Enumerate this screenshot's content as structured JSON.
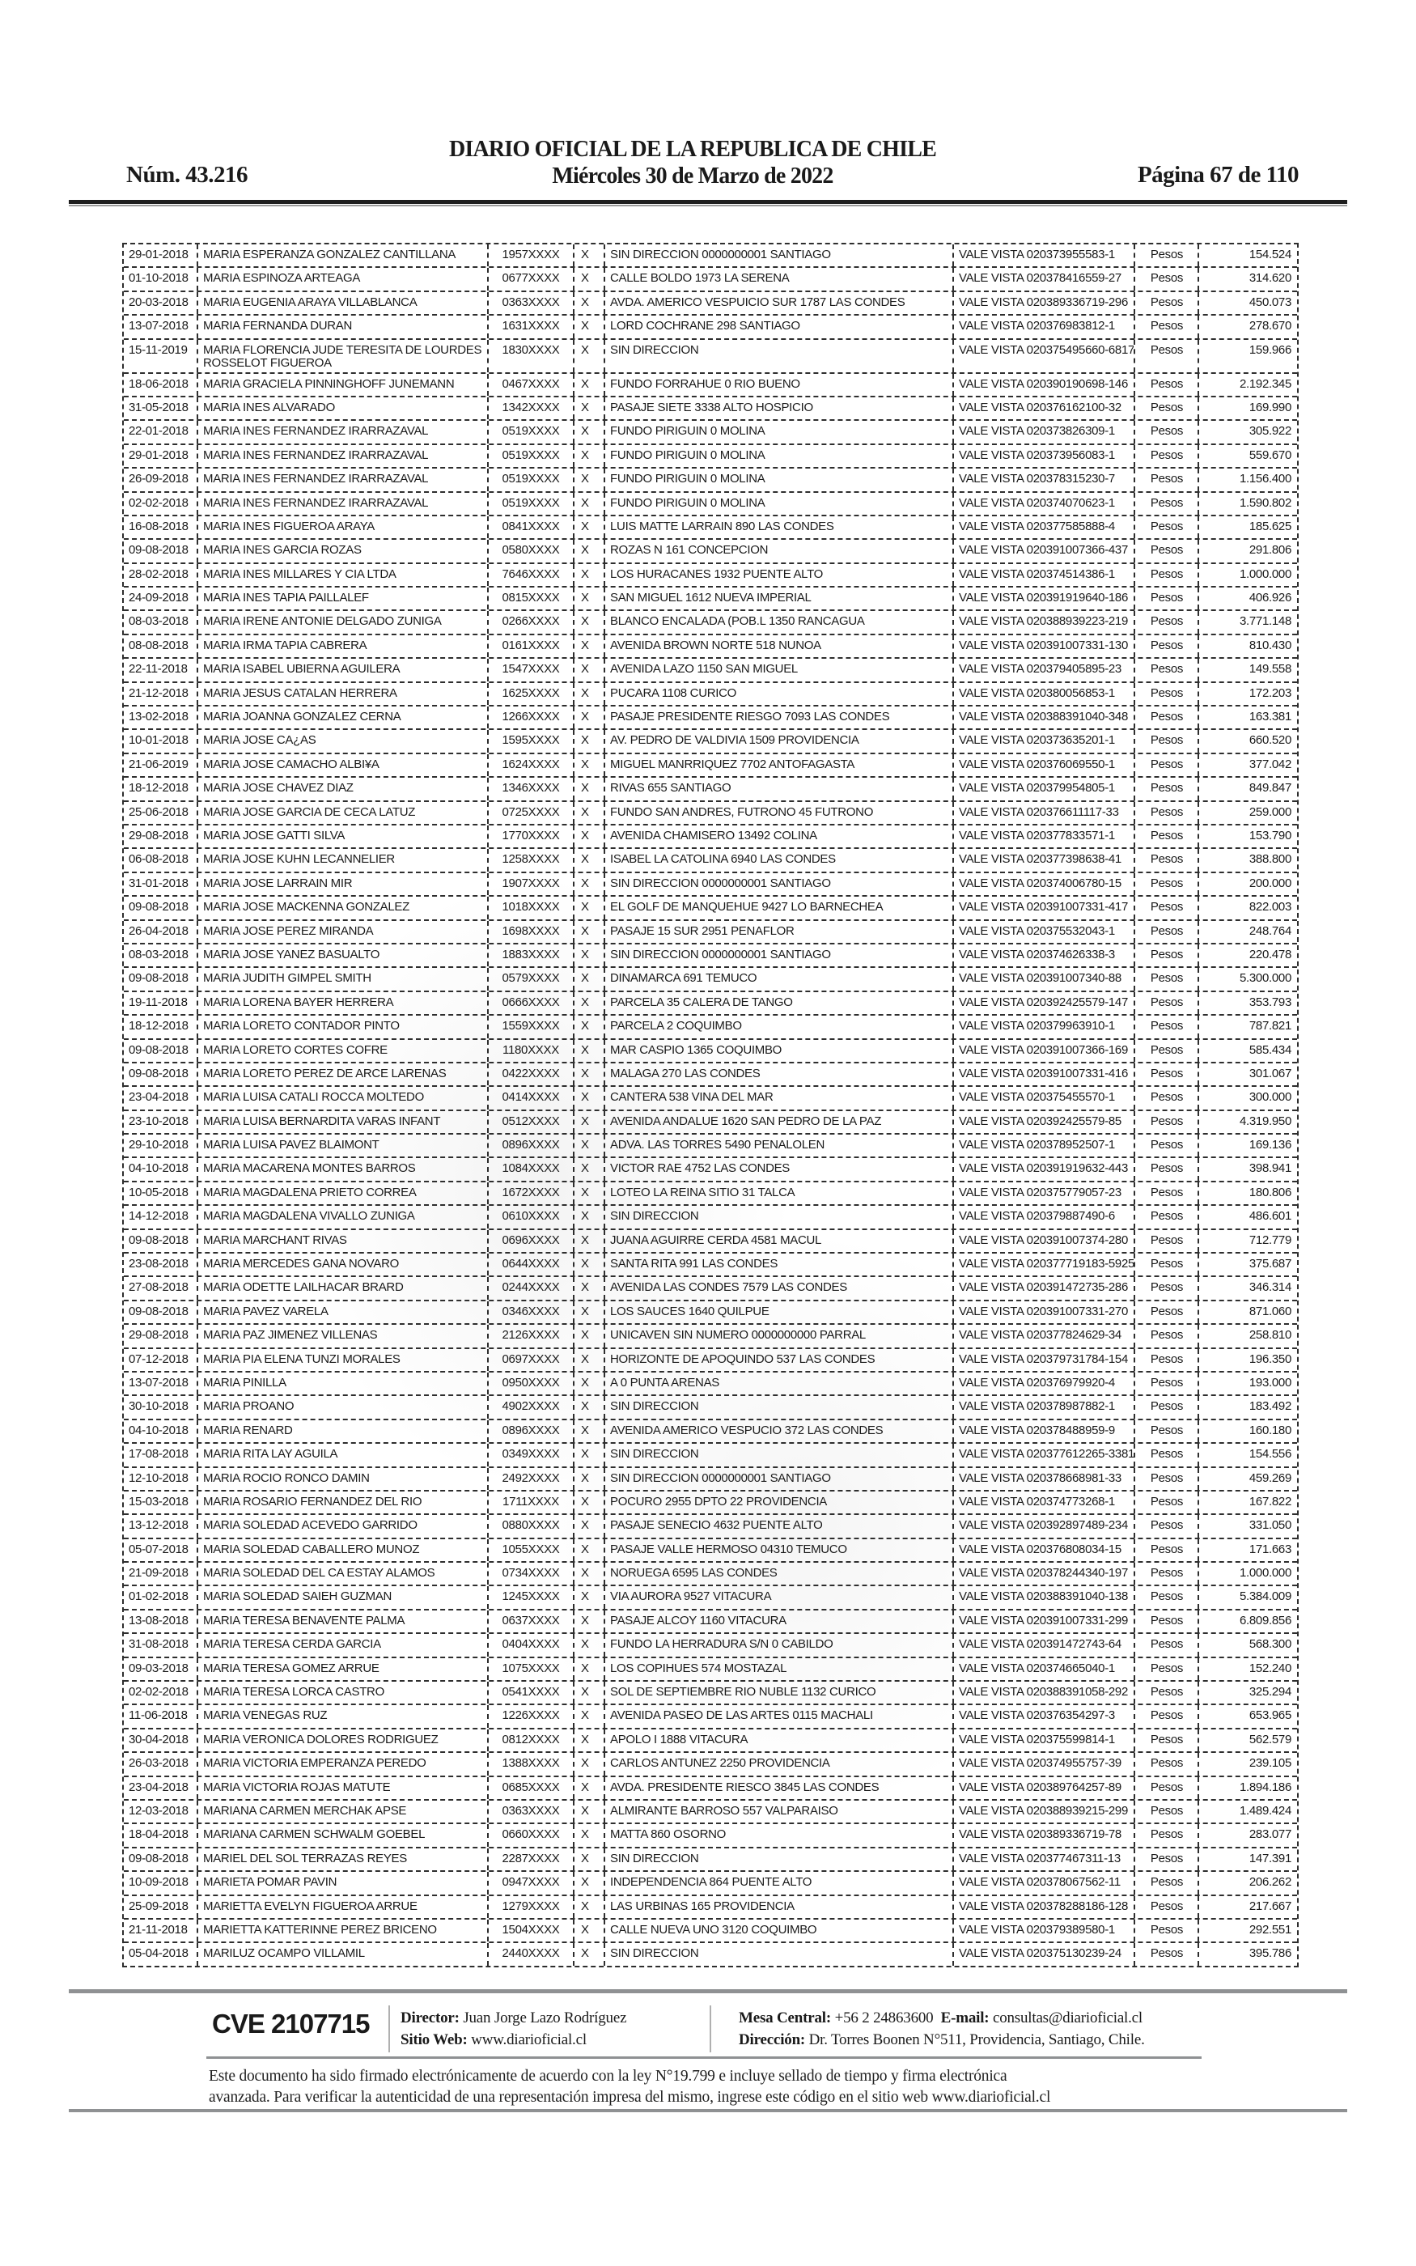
{
  "header": {
    "issue_number": "Núm. 43.216",
    "title": "DIARIO OFICIAL DE LA REPUBLICA DE CHILE",
    "date_line": "Miércoles 30 de Marzo de 2022",
    "page_indicator": "Página 67 de 110"
  },
  "table": {
    "check_mark": "X",
    "currency_label": "Pesos",
    "rows": [
      {
        "date": "29-01-2018",
        "name": "MARIA ESPERANZA GONZALEZ CANTILLANA",
        "id": "1957XXXX",
        "address": "SIN DIRECCION 0000000001 SANTIAGO",
        "vale_vista": "VALE VISTA 020373955583-1",
        "amount": "154.524"
      },
      {
        "date": "01-10-2018",
        "name": "MARIA ESPINOZA ARTEAGA",
        "id": "0677XXXX",
        "address": "CALLE BOLDO 1973 LA SERENA",
        "vale_vista": "VALE VISTA 020378416559-27",
        "amount": "314.620"
      },
      {
        "date": "20-03-2018",
        "name": "MARIA EUGENIA ARAYA VILLABLANCA",
        "id": "0363XXXX",
        "address": "AVDA. AMERICO VESPUICIO SUR 1787 LAS CONDES",
        "vale_vista": "VALE VISTA 020389336719-296",
        "amount": "450.073"
      },
      {
        "date": "13-07-2018",
        "name": "MARIA FERNANDA DURAN",
        "id": "1631XXXX",
        "address": "LORD COCHRANE 298 SANTIAGO",
        "vale_vista": "VALE VISTA 020376983812-1",
        "amount": "278.670"
      },
      {
        "date": "15-11-2019",
        "name": "MARIA FLORENCIA JUDE TERESITA DE LOURDES\nROSSELOT FIGUEROA",
        "id": "1830XXXX",
        "address": "SIN DIRECCION",
        "vale_vista": "VALE VISTA 020375495660-6817",
        "amount": "159.966"
      },
      {
        "date": "18-06-2018",
        "name": "MARIA GRACIELA PINNINGHOFF JUNEMANN",
        "id": "0467XXXX",
        "address": "FUNDO FORRAHUE 0 RIO BUENO",
        "vale_vista": "VALE VISTA 020390190698-146",
        "amount": "2.192.345"
      },
      {
        "date": "31-05-2018",
        "name": "MARIA INES ALVARADO",
        "id": "1342XXXX",
        "address": "PASAJE SIETE 3338 ALTO HOSPICIO",
        "vale_vista": "VALE VISTA 020376162100-32",
        "amount": "169.990"
      },
      {
        "date": "22-01-2018",
        "name": "MARIA INES FERNANDEZ IRARRAZAVAL",
        "id": "0519XXXX",
        "address": "FUNDO PIRIGUIN 0 MOLINA",
        "vale_vista": "VALE VISTA 020373826309-1",
        "amount": "305.922"
      },
      {
        "date": "29-01-2018",
        "name": "MARIA INES FERNANDEZ IRARRAZAVAL",
        "id": "0519XXXX",
        "address": "FUNDO PIRIGUIN 0 MOLINA",
        "vale_vista": "VALE VISTA 020373956083-1",
        "amount": "559.670"
      },
      {
        "date": "26-09-2018",
        "name": "MARIA INES FERNANDEZ IRARRAZAVAL",
        "id": "0519XXXX",
        "address": "FUNDO PIRIGUIN 0 MOLINA",
        "vale_vista": "VALE VISTA 020378315230-7",
        "amount": "1.156.400"
      },
      {
        "date": "02-02-2018",
        "name": "MARIA INES FERNANDEZ IRARRAZAVAL",
        "id": "0519XXXX",
        "address": "FUNDO PIRIGUIN 0 MOLINA",
        "vale_vista": "VALE VISTA 020374070623-1",
        "amount": "1.590.802"
      },
      {
        "date": "16-08-2018",
        "name": "MARIA INES FIGUEROA ARAYA",
        "id": "0841XXXX",
        "address": "LUIS MATTE LARRAIN 890 LAS CONDES",
        "vale_vista": "VALE VISTA 020377585888-4",
        "amount": "185.625"
      },
      {
        "date": "09-08-2018",
        "name": "MARIA INES GARCIA ROZAS",
        "id": "0580XXXX",
        "address": "ROZAS N 161 CONCEPCION",
        "vale_vista": "VALE VISTA 020391007366-437",
        "amount": "291.806"
      },
      {
        "date": "28-02-2018",
        "name": "MARIA INES MILLARES Y CIA LTDA",
        "id": "7646XXXX",
        "address": "LOS HURACANES 1932 PUENTE ALTO",
        "vale_vista": "VALE VISTA 020374514386-1",
        "amount": "1.000.000"
      },
      {
        "date": "24-09-2018",
        "name": "MARIA INES TAPIA PAILLALEF",
        "id": "0815XXXX",
        "address": "SAN MIGUEL 1612 NUEVA IMPERIAL",
        "vale_vista": "VALE VISTA 020391919640-186",
        "amount": "406.926"
      },
      {
        "date": "08-03-2018",
        "name": "MARIA IRENE ANTONIE DELGADO ZUNIGA",
        "id": "0266XXXX",
        "address": "BLANCO ENCALADA (POB.L 1350 RANCAGUA",
        "vale_vista": "VALE VISTA 020388939223-219",
        "amount": "3.771.148"
      },
      {
        "date": "08-08-2018",
        "name": "MARIA IRMA TAPIA CABRERA",
        "id": "0161XXXX",
        "address": "AVENIDA BROWN NORTE 518 NUNOA",
        "vale_vista": "VALE VISTA 020391007331-130",
        "amount": "810.430"
      },
      {
        "date": "22-11-2018",
        "name": "MARIA ISABEL UBIERNA AGUILERA",
        "id": "1547XXXX",
        "address": "AVENIDA LAZO 1150 SAN MIGUEL",
        "vale_vista": "VALE VISTA 020379405895-23",
        "amount": "149.558"
      },
      {
        "date": "21-12-2018",
        "name": "MARIA JESUS CATALAN HERRERA",
        "id": "1625XXXX",
        "address": "PUCARA 1108 CURICO",
        "vale_vista": "VALE VISTA 020380056853-1",
        "amount": "172.203"
      },
      {
        "date": "13-02-2018",
        "name": "MARIA JOANNA GONZALEZ CERNA",
        "id": "1266XXXX",
        "address": "PASAJE PRESIDENTE RIESGO 7093 LAS CONDES",
        "vale_vista": "VALE VISTA 020388391040-348",
        "amount": "163.381"
      },
      {
        "date": "10-01-2018",
        "name": "MARIA JOSE CA¿AS",
        "id": "1595XXXX",
        "address": "AV. PEDRO DE VALDIVIA 1509 PROVIDENCIA",
        "vale_vista": "VALE VISTA 020373635201-1",
        "amount": "660.520"
      },
      {
        "date": "21-06-2019",
        "name": "MARIA JOSE CAMACHO ALBI¥A",
        "id": "1624XXXX",
        "address": "MIGUEL MANRRIQUEZ 7702 ANTOFAGASTA",
        "vale_vista": "VALE VISTA 020376069550-1",
        "amount": "377.042"
      },
      {
        "date": "18-12-2018",
        "name": "MARIA JOSE CHAVEZ DIAZ",
        "id": "1346XXXX",
        "address": "RIVAS 655 SANTIAGO",
        "vale_vista": "VALE VISTA 020379954805-1",
        "amount": "849.847"
      },
      {
        "date": "25-06-2018",
        "name": "MARIA JOSE GARCIA DE CECA LATUZ",
        "id": "0725XXXX",
        "address": "FUNDO SAN ANDRES, FUTRONO 45 FUTRONO",
        "vale_vista": "VALE VISTA 020376611117-33",
        "amount": "259.000"
      },
      {
        "date": "29-08-2018",
        "name": "MARIA JOSE GATTI SILVA",
        "id": "1770XXXX",
        "address": "AVENIDA CHAMISERO 13492 COLINA",
        "vale_vista": "VALE VISTA 020377833571-1",
        "amount": "153.790"
      },
      {
        "date": "06-08-2018",
        "name": "MARIA JOSE KUHN LECANNELIER",
        "id": "1258XXXX",
        "address": "ISABEL LA CATOLINA 6940 LAS CONDES",
        "vale_vista": "VALE VISTA 020377398638-41",
        "amount": "388.800"
      },
      {
        "date": "31-01-2018",
        "name": "MARIA JOSE LARRAIN MIR",
        "id": "1907XXXX",
        "address": "SIN DIRECCION 0000000001 SANTIAGO",
        "vale_vista": "VALE VISTA 020374006780-15",
        "amount": "200.000"
      },
      {
        "date": "09-08-2018",
        "name": "MARIA JOSE MACKENNA GONZALEZ",
        "id": "1018XXXX",
        "address": "EL GOLF DE MANQUEHUE 9427 LO BARNECHEA",
        "vale_vista": "VALE VISTA 020391007331-417",
        "amount": "822.003"
      },
      {
        "date": "26-04-2018",
        "name": "MARIA JOSE PEREZ MIRANDA",
        "id": "1698XXXX",
        "address": "PASAJE 15 SUR 2951 PENAFLOR",
        "vale_vista": "VALE VISTA 020375532043-1",
        "amount": "248.764"
      },
      {
        "date": "08-03-2018",
        "name": "MARIA JOSE YANEZ BASUALTO",
        "id": "1883XXXX",
        "address": "SIN DIRECCION 0000000001 SANTIAGO",
        "vale_vista": "VALE VISTA 020374626338-3",
        "amount": "220.478"
      },
      {
        "date": "09-08-2018",
        "name": "MARIA JUDITH GIMPEL SMITH",
        "id": "0579XXXX",
        "address": "DINAMARCA 691 TEMUCO",
        "vale_vista": "VALE VISTA 020391007340-88",
        "amount": "5.300.000"
      },
      {
        "date": "19-11-2018",
        "name": "MARIA LORENA BAYER HERRERA",
        "id": "0666XXXX",
        "address": "PARCELA 35 CALERA DE TANGO",
        "vale_vista": "VALE VISTA 020392425579-147",
        "amount": "353.793"
      },
      {
        "date": "18-12-2018",
        "name": "MARIA LORETO CONTADOR PINTO",
        "id": "1559XXXX",
        "address": "PARCELA 2 COQUIMBO",
        "vale_vista": "VALE VISTA 020379963910-1",
        "amount": "787.821"
      },
      {
        "date": "09-08-2018",
        "name": "MARIA LORETO CORTES COFRE",
        "id": "1180XXXX",
        "address": "MAR CASPIO 1365 COQUIMBO",
        "vale_vista": "VALE VISTA 020391007366-169",
        "amount": "585.434"
      },
      {
        "date": "09-08-2018",
        "name": "MARIA LORETO PEREZ DE ARCE LARENAS",
        "id": "0422XXXX",
        "address": "MALAGA 270 LAS CONDES",
        "vale_vista": "VALE VISTA 020391007331-416",
        "amount": "301.067"
      },
      {
        "date": "23-04-2018",
        "name": "MARIA LUISA CATALI ROCCA MOLTEDO",
        "id": "0414XXXX",
        "address": "CANTERA 538 VINA DEL MAR",
        "vale_vista": "VALE VISTA 020375455570-1",
        "amount": "300.000"
      },
      {
        "date": "23-10-2018",
        "name": "MARIA LUISA BERNARDITA VARAS INFANT",
        "id": "0512XXXX",
        "address": "AVENIDA ANDALUE 1620 SAN PEDRO DE LA PAZ",
        "vale_vista": "VALE VISTA 020392425579-85",
        "amount": "4.319.950"
      },
      {
        "date": "29-10-2018",
        "name": "MARIA LUISA PAVEZ BLAIMONT",
        "id": "0896XXXX",
        "address": "ADVA. LAS TORRES 5490 PENALOLEN",
        "vale_vista": "VALE VISTA 020378952507-1",
        "amount": "169.136"
      },
      {
        "date": "04-10-2018",
        "name": "MARIA MACARENA MONTES BARROS",
        "id": "1084XXXX",
        "address": "VICTOR RAE 4752 LAS CONDES",
        "vale_vista": "VALE VISTA 020391919632-443",
        "amount": "398.941"
      },
      {
        "date": "10-05-2018",
        "name": "MARIA MAGDALENA PRIETO CORREA",
        "id": "1672XXXX",
        "address": "LOTEO LA REINA SITIO 31 TALCA",
        "vale_vista": "VALE VISTA 020375779057-23",
        "amount": "180.806"
      },
      {
        "date": "14-12-2018",
        "name": "MARIA MAGDALENA VIVALLO ZUNIGA",
        "id": "0610XXXX",
        "address": "SIN DIRECCION",
        "vale_vista": "VALE VISTA 020379887490-6",
        "amount": "486.601"
      },
      {
        "date": "09-08-2018",
        "name": "MARIA MARCHANT RIVAS",
        "id": "0696XXXX",
        "address": "JUANA AGUIRRE CERDA 4581 MACUL",
        "vale_vista": "VALE VISTA 020391007374-280",
        "amount": "712.779"
      },
      {
        "date": "23-08-2018",
        "name": "MARIA MERCEDES GANA NOVARO",
        "id": "0644XXXX",
        "address": "SANTA RITA 991 LAS CONDES",
        "vale_vista": "VALE VISTA 020377719183-5925",
        "amount": "375.687"
      },
      {
        "date": "27-08-2018",
        "name": "MARIA ODETTE LAILHACAR BRARD",
        "id": "0244XXXX",
        "address": "AVENIDA LAS CONDES 7579 LAS CONDES",
        "vale_vista": "VALE VISTA 020391472735-286",
        "amount": "346.314"
      },
      {
        "date": "09-08-2018",
        "name": "MARIA PAVEZ VARELA",
        "id": "0346XXXX",
        "address": "LOS SAUCES 1640 QUILPUE",
        "vale_vista": "VALE VISTA 020391007331-270",
        "amount": "871.060"
      },
      {
        "date": "29-08-2018",
        "name": "MARIA PAZ JIMENEZ VILLENAS",
        "id": "2126XXXX",
        "address": "UNICAVEN SIN NUMERO 0000000000 PARRAL",
        "vale_vista": "VALE VISTA 020377824629-34",
        "amount": "258.810"
      },
      {
        "date": "07-12-2018",
        "name": "MARIA PIA ELENA TUNZI MORALES",
        "id": "0697XXXX",
        "address": "HORIZONTE DE APOQUINDO 537 LAS CONDES",
        "vale_vista": "VALE VISTA 020379731784-154",
        "amount": "196.350"
      },
      {
        "date": "13-07-2018",
        "name": "MARIA PINILLA",
        "id": "0950XXXX",
        "address": "A 0 PUNTA ARENAS",
        "vale_vista": "VALE VISTA 020376979920-4",
        "amount": "193.000"
      },
      {
        "date": "30-10-2018",
        "name": "MARIA PROANO",
        "id": "4902XXXX",
        "address": "SIN DIRECCION",
        "vale_vista": "VALE VISTA 020378987882-1",
        "amount": "183.492"
      },
      {
        "date": "04-10-2018",
        "name": "MARIA RENARD",
        "id": "0896XXXX",
        "address": "AVENIDA AMERICO VESPUCIO 372 LAS CONDES",
        "vale_vista": "VALE VISTA 020378488959-9",
        "amount": "160.180"
      },
      {
        "date": "17-08-2018",
        "name": "MARIA RITA LAY AGUILA",
        "id": "0349XXXX",
        "address": "SIN DIRECCION",
        "vale_vista": "VALE VISTA 020377612265-3381",
        "amount": "154.556"
      },
      {
        "date": "12-10-2018",
        "name": "MARIA ROCIO RONCO DAMIN",
        "id": "2492XXXX",
        "address": "SIN DIRECCION 0000000001 SANTIAGO",
        "vale_vista": "VALE VISTA 020378668981-33",
        "amount": "459.269"
      },
      {
        "date": "15-03-2018",
        "name": "MARIA ROSARIO FERNANDEZ DEL RIO",
        "id": "1711XXXX",
        "address": "POCURO 2955 DPTO 22 PROVIDENCIA",
        "vale_vista": "VALE VISTA 020374773268-1",
        "amount": "167.822"
      },
      {
        "date": "13-12-2018",
        "name": "MARIA SOLEDAD ACEVEDO GARRIDO",
        "id": "0880XXXX",
        "address": "PASAJE SENECIO 4632 PUENTE ALTO",
        "vale_vista": "VALE VISTA 020392897489-234",
        "amount": "331.050"
      },
      {
        "date": "05-07-2018",
        "name": "MARIA SOLEDAD CABALLERO MUNOZ",
        "id": "1055XXXX",
        "address": "PASAJE VALLE HERMOSO 04310 TEMUCO",
        "vale_vista": "VALE VISTA 020376808034-15",
        "amount": "171.663"
      },
      {
        "date": "21-09-2018",
        "name": "MARIA SOLEDAD DEL CA ESTAY ALAMOS",
        "id": "0734XXXX",
        "address": "NORUEGA 6595 LAS CONDES",
        "vale_vista": "VALE VISTA 020378244340-197",
        "amount": "1.000.000"
      },
      {
        "date": "01-02-2018",
        "name": "MARIA SOLEDAD SAIEH GUZMAN",
        "id": "1245XXXX",
        "address": "VIA AURORA 9527 VITACURA",
        "vale_vista": "VALE VISTA 020388391040-138",
        "amount": "5.384.009"
      },
      {
        "date": "13-08-2018",
        "name": "MARIA TERESA BENAVENTE PALMA",
        "id": "0637XXXX",
        "address": "PASAJE ALCOY 1160 VITACURA",
        "vale_vista": "VALE VISTA 020391007331-299",
        "amount": "6.809.856"
      },
      {
        "date": "31-08-2018",
        "name": "MARIA TERESA CERDA GARCIA",
        "id": "0404XXXX",
        "address": "FUNDO LA HERRADURA S/N 0 CABILDO",
        "vale_vista": "VALE VISTA 020391472743-64",
        "amount": "568.300"
      },
      {
        "date": "09-03-2018",
        "name": "MARIA TERESA GOMEZ ARRUE",
        "id": "1075XXXX",
        "address": "LOS COPIHUES 574 MOSTAZAL",
        "vale_vista": "VALE VISTA 020374665040-1",
        "amount": "152.240"
      },
      {
        "date": "02-02-2018",
        "name": "MARIA TERESA LORCA CASTRO",
        "id": "0541XXXX",
        "address": "SOL DE SEPTIEMBRE RIO NUBLE 1132 CURICO",
        "vale_vista": "VALE VISTA 020388391058-292",
        "amount": "325.294"
      },
      {
        "date": "11-06-2018",
        "name": "MARIA VENEGAS RUZ",
        "id": "1226XXXX",
        "address": "AVENIDA PASEO DE LAS ARTES 0115 MACHALI",
        "vale_vista": "VALE VISTA 020376354297-3",
        "amount": "653.965"
      },
      {
        "date": "30-04-2018",
        "name": "MARIA VERONICA DOLORES RODRIGUEZ",
        "id": "0812XXXX",
        "address": "APOLO I 1888 VITACURA",
        "vale_vista": "VALE VISTA 020375599814-1",
        "amount": "562.579"
      },
      {
        "date": "26-03-2018",
        "name": "MARIA VICTORIA EMPERANZA PEREDO",
        "id": "1388XXXX",
        "address": "CARLOS ANTUNEZ 2250 PROVIDENCIA",
        "vale_vista": "VALE VISTA 020374955757-39",
        "amount": "239.105"
      },
      {
        "date": "23-04-2018",
        "name": "MARIA VICTORIA ROJAS MATUTE",
        "id": "0685XXXX",
        "address": "AVDA. PRESIDENTE RIESCO 3845 LAS CONDES",
        "vale_vista": "VALE VISTA 020389764257-89",
        "amount": "1.894.186"
      },
      {
        "date": "12-03-2018",
        "name": "MARIANA CARMEN MERCHAK APSE",
        "id": "0363XXXX",
        "address": "ALMIRANTE BARROSO 557 VALPARAISO",
        "vale_vista": "VALE VISTA 020388939215-299",
        "amount": "1.489.424"
      },
      {
        "date": "18-04-2018",
        "name": "MARIANA CARMEN SCHWALM GOEBEL",
        "id": "0660XXXX",
        "address": "MATTA 860 OSORNO",
        "vale_vista": "VALE VISTA 020389336719-78",
        "amount": "283.077"
      },
      {
        "date": "09-08-2018",
        "name": "MARIEL DEL SOL TERRAZAS REYES",
        "id": "2287XXXX",
        "address": "SIN DIRECCION",
        "vale_vista": "VALE VISTA 020377467311-13",
        "amount": "147.391"
      },
      {
        "date": "10-09-2018",
        "name": "MARIETA POMAR PAVIN",
        "id": "0947XXXX",
        "address": "INDEPENDENCIA 864 PUENTE ALTO",
        "vale_vista": "VALE VISTA 020378067562-11",
        "amount": "206.262"
      },
      {
        "date": "25-09-2018",
        "name": "MARIETTA EVELYN FIGUEROA ARRUE",
        "id": "1279XXXX",
        "address": "LAS URBINAS 165 PROVIDENCIA",
        "vale_vista": "VALE VISTA 020378288186-128",
        "amount": "217.667"
      },
      {
        "date": "21-11-2018",
        "name": "MARIETTA KATTERINNE PEREZ BRICENO",
        "id": "1504XXXX",
        "address": "CALLE NUEVA UNO 3120 COQUIMBO",
        "vale_vista": "VALE VISTA 020379389580-1",
        "amount": "292.551"
      },
      {
        "date": "05-04-2018",
        "name": "MARILUZ OCAMPO VILLAMIL",
        "id": "2440XXXX",
        "address": "SIN DIRECCION",
        "vale_vista": "VALE VISTA 020375130239-24",
        "amount": "395.786"
      }
    ]
  },
  "footer": {
    "cve": "CVE 2107715",
    "director_label": "Director:",
    "director_value": "Juan Jorge Lazo Rodríguez",
    "sitio_label": "Sitio Web:",
    "sitio_value": "www.diarioficial.cl",
    "mesa_label": "Mesa Central:",
    "mesa_value": "+56 2 24863600",
    "email_label": "E-mail:",
    "email_value": "consultas@diarioficial.cl",
    "direccion_label": "Dirección:",
    "direccion_value": "Dr. Torres Boonen N°511, Providencia, Santiago, Chile.",
    "legal_text": "Este documento ha sido firmado electrónicamente de acuerdo con la ley N°19.799 e incluye sellado de tiempo y firma electrónica\navanzada. Para verificar la autenticidad de una representación impresa del mismo, ingrese este código en el sitio web www.diarioficial.cl",
    "flag_blue": "#1a5dab",
    "flag_red": "#e73a4e"
  }
}
